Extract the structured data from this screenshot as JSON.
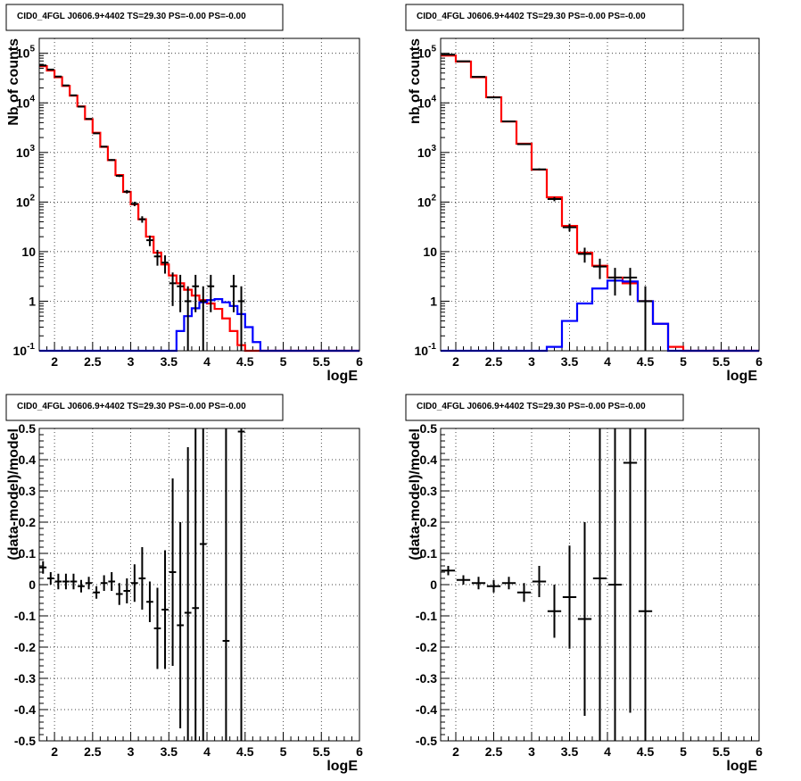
{
  "chart_data": [
    {
      "type": "line",
      "title": "CID0_4FGL J0606.9+4402 TS=29.30 PS=-0.00 PS=-0.00",
      "xlabel": "logE",
      "ylabel": "Nb of counts",
      "xlim": [
        1.8,
        6.0
      ],
      "ylim": [
        0.1,
        200000
      ],
      "yscale": "log",
      "grid": true,
      "x_ticks": [
        "2",
        "2.5",
        "3",
        "3.5",
        "4",
        "4.5",
        "5",
        "5.5",
        "6"
      ],
      "y_ticks": [
        "10^-1",
        "1",
        "10",
        "10^2",
        "10^3",
        "10^4",
        "10^5"
      ],
      "series": [
        {
          "color": "#ff0000",
          "kind": "step",
          "edges": [
            1.8,
            1.9,
            2.0,
            2.1,
            2.2,
            2.3,
            2.4,
            2.5,
            2.6,
            2.7,
            2.8,
            2.9,
            3.0,
            3.1,
            3.2,
            3.3,
            3.4,
            3.5,
            3.6,
            3.7,
            3.8,
            3.9,
            4.0,
            4.1,
            4.2,
            4.3,
            4.4,
            4.5,
            4.6,
            4.7,
            4.8,
            4.9,
            5.0,
            5.1,
            5.2,
            5.3,
            5.4,
            5.5,
            5.6,
            5.7,
            5.8,
            5.9,
            6.0
          ],
          "values": [
            55000,
            45000,
            33000,
            22000,
            14000,
            8500,
            4700,
            2500,
            1300,
            700,
            350,
            160,
            90,
            45,
            20,
            9.5,
            5.5,
            3.3,
            2.3,
            1.7,
            1.3,
            1.05,
            0.9,
            0.7,
            0.45,
            0.25,
            0.13,
            0.1,
            0.1,
            0.1,
            0.1,
            0.1,
            0.1,
            0.1,
            0.1,
            0.1,
            0.1,
            0.1,
            0.1,
            0.1,
            0.1,
            0.1
          ]
        },
        {
          "color": "#0000ff",
          "kind": "step",
          "edges": [
            1.8,
            1.9,
            2.0,
            2.1,
            2.2,
            2.3,
            2.4,
            2.5,
            2.6,
            2.7,
            2.8,
            2.9,
            3.0,
            3.1,
            3.2,
            3.3,
            3.4,
            3.5,
            3.6,
            3.7,
            3.8,
            3.9,
            4.0,
            4.1,
            4.2,
            4.3,
            4.4,
            4.5,
            4.6,
            4.7,
            4.8,
            4.9,
            5.0,
            5.1,
            5.2,
            5.3,
            5.4,
            5.5,
            5.6,
            5.7,
            5.8,
            5.9,
            6.0
          ],
          "values": [
            0.1,
            0.1,
            0.1,
            0.1,
            0.1,
            0.1,
            0.1,
            0.1,
            0.1,
            0.1,
            0.1,
            0.1,
            0.1,
            0.1,
            0.1,
            0.1,
            0.1,
            0.1,
            0.25,
            0.5,
            0.72,
            0.95,
            1.05,
            1.1,
            0.95,
            0.8,
            0.55,
            0.3,
            0.15,
            0.1,
            0.1,
            0.1,
            0.1,
            0.1,
            0.1,
            0.1,
            0.1,
            0.1,
            0.1,
            0.1,
            0.1,
            0.1
          ]
        },
        {
          "color": "#000000",
          "kind": "errorbar",
          "points": [
            {
              "x": 1.85,
              "y": 57000,
              "err": 250
            },
            {
              "x": 1.95,
              "y": 47000,
              "err": 220
            },
            {
              "x": 2.05,
              "y": 34000,
              "err": 190
            },
            {
              "x": 2.15,
              "y": 22500,
              "err": 150
            },
            {
              "x": 2.25,
              "y": 14200,
              "err": 120
            },
            {
              "x": 2.35,
              "y": 8400,
              "err": 92
            },
            {
              "x": 2.45,
              "y": 4750,
              "err": 69
            },
            {
              "x": 2.55,
              "y": 2430,
              "err": 49
            },
            {
              "x": 2.65,
              "y": 1310,
              "err": 36
            },
            {
              "x": 2.75,
              "y": 705,
              "err": 27
            },
            {
              "x": 2.85,
              "y": 338,
              "err": 18
            },
            {
              "x": 2.95,
              "y": 162,
              "err": 13
            },
            {
              "x": 3.05,
              "y": 92,
              "err": 9.6
            },
            {
              "x": 3.15,
              "y": 45,
              "err": 6.7
            },
            {
              "x": 3.25,
              "y": 17,
              "err": 4.1
            },
            {
              "x": 3.35,
              "y": 8,
              "err": 2.8
            },
            {
              "x": 3.45,
              "y": 6,
              "err": 2.4
            },
            {
              "x": 3.55,
              "y": 2.3,
              "err": 1.5
            },
            {
              "x": 3.65,
              "y": 2,
              "err": 1.4
            },
            {
              "x": 3.75,
              "y": 1,
              "err": 1.0
            },
            {
              "x": 3.85,
              "y": 2,
              "err": 1.4
            },
            {
              "x": 3.95,
              "y": 1,
              "err": 1.0
            },
            {
              "x": 4.05,
              "y": 2,
              "err": 1.4
            },
            {
              "x": 4.35,
              "y": 2,
              "err": 1.4
            },
            {
              "x": 4.45,
              "y": 1,
              "err": 1.0
            }
          ]
        }
      ]
    },
    {
      "type": "line",
      "title": "CID0_4FGL J0606.9+4402 TS=29.30 PS=-0.00 PS=-0.00",
      "xlabel": "logE",
      "ylabel": "nb of counts",
      "xlim": [
        1.8,
        6.0
      ],
      "ylim": [
        0.1,
        200000
      ],
      "yscale": "log",
      "grid": true,
      "x_ticks": [
        "2",
        "2.5",
        "3",
        "3.5",
        "4",
        "4.5",
        "5",
        "5.5",
        "6"
      ],
      "y_ticks": [
        "10^-1",
        "1",
        "10",
        "10^2",
        "10^3",
        "10^4",
        "10^5"
      ],
      "series": [
        {
          "color": "#ff0000",
          "kind": "step",
          "edges": [
            1.8,
            2.0,
            2.2,
            2.4,
            2.6,
            2.8,
            3.0,
            3.2,
            3.4,
            3.6,
            3.8,
            4.0,
            4.2,
            4.4,
            4.6,
            4.8,
            5.0,
            5.2,
            5.4,
            5.6,
            5.8,
            6.0
          ],
          "values": [
            90000,
            68000,
            33000,
            13000,
            4200,
            1500,
            450,
            125,
            33,
            9.5,
            5.2,
            3.0,
            2.3,
            1.0,
            0.35,
            0.12,
            0.1,
            0.1,
            0.1,
            0.1,
            0.1
          ]
        },
        {
          "color": "#0000ff",
          "kind": "step",
          "edges": [
            1.8,
            2.0,
            2.2,
            2.4,
            2.6,
            2.8,
            3.0,
            3.2,
            3.4,
            3.6,
            3.8,
            4.0,
            4.2,
            4.4,
            4.6,
            4.8,
            5.0,
            5.2,
            5.4,
            5.6,
            5.8,
            6.0
          ],
          "values": [
            0.1,
            0.1,
            0.1,
            0.1,
            0.1,
            0.1,
            0.1,
            0.12,
            0.4,
            0.9,
            1.8,
            2.6,
            2.5,
            1.0,
            0.35,
            0.1,
            0.1,
            0.1,
            0.1,
            0.1,
            0.1
          ]
        },
        {
          "color": "#000000",
          "kind": "errorbar",
          "points": [
            {
              "x": 1.9,
              "y": 94000,
              "err": 310
            },
            {
              "x": 2.1,
              "y": 69000,
              "err": 260
            },
            {
              "x": 2.3,
              "y": 33500,
              "err": 180
            },
            {
              "x": 2.5,
              "y": 12900,
              "err": 110
            },
            {
              "x": 2.7,
              "y": 4230,
              "err": 65
            },
            {
              "x": 2.9,
              "y": 1470,
              "err": 38
            },
            {
              "x": 3.1,
              "y": 456,
              "err": 21
            },
            {
              "x": 3.3,
              "y": 115,
              "err": 11
            },
            {
              "x": 3.5,
              "y": 31,
              "err": 5.6
            },
            {
              "x": 3.7,
              "y": 9,
              "err": 3.0
            },
            {
              "x": 3.9,
              "y": 5,
              "err": 2.2
            },
            {
              "x": 4.1,
              "y": 3,
              "err": 1.7
            },
            {
              "x": 4.3,
              "y": 3,
              "err": 1.7
            },
            {
              "x": 4.5,
              "y": 1,
              "err": 1.0
            }
          ]
        }
      ]
    },
    {
      "type": "scatter",
      "title": "CID0_4FGL J0606.9+4402 TS=29.30 PS=-0.00 PS=-0.00",
      "xlabel": "logE",
      "ylabel": "(data-model)/model",
      "xlim": [
        1.8,
        6.0
      ],
      "ylim": [
        -0.5,
        0.5
      ],
      "grid": true,
      "x_ticks": [
        "2",
        "2.5",
        "3",
        "3.5",
        "4",
        "4.5",
        "5",
        "5.5",
        "6"
      ],
      "y_ticks": [
        "-0.5",
        "-0.4",
        "-0.3",
        "-0.2",
        "-0.1",
        "0",
        "0.1",
        "0.2",
        "0.3",
        "0.4",
        "0.5"
      ],
      "series": [
        {
          "color": "#000000",
          "kind": "errorbar",
          "points": [
            {
              "x": 1.85,
              "y": 0.055,
              "err": 0.02
            },
            {
              "x": 1.95,
              "y": 0.02,
              "err": 0.02
            },
            {
              "x": 2.05,
              "y": 0.01,
              "err": 0.025
            },
            {
              "x": 2.15,
              "y": 0.01,
              "err": 0.025
            },
            {
              "x": 2.25,
              "y": 0.01,
              "err": 0.025
            },
            {
              "x": 2.35,
              "y": -0.005,
              "err": 0.02
            },
            {
              "x": 2.45,
              "y": 0.005,
              "err": 0.02
            },
            {
              "x": 2.55,
              "y": -0.025,
              "err": 0.02
            },
            {
              "x": 2.65,
              "y": 0.005,
              "err": 0.025
            },
            {
              "x": 2.75,
              "y": 0.01,
              "err": 0.03
            },
            {
              "x": 2.85,
              "y": -0.03,
              "err": 0.035
            },
            {
              "x": 2.95,
              "y": -0.02,
              "err": 0.04
            },
            {
              "x": 3.05,
              "y": 0.005,
              "err": 0.06
            },
            {
              "x": 3.15,
              "y": 0.02,
              "err": 0.1
            },
            {
              "x": 3.25,
              "y": -0.055,
              "err": 0.065
            },
            {
              "x": 3.35,
              "y": -0.14,
              "err": 0.13
            },
            {
              "x": 3.45,
              "y": -0.08,
              "err": 0.19
            },
            {
              "x": 3.55,
              "y": 0.04,
              "err": 0.3
            },
            {
              "x": 3.65,
              "y": -0.13,
              "err": 0.33
            },
            {
              "x": 3.75,
              "y": -0.09,
              "err": 0.53
            },
            {
              "x": 3.85,
              "y": -0.075,
              "err": 0.7
            },
            {
              "x": 3.95,
              "y": 0.13,
              "err": 1.0
            },
            {
              "x": 4.25,
              "y": -0.18,
              "err": 1.5
            },
            {
              "x": 4.45,
              "y": 0.49,
              "err": 2.0
            }
          ]
        }
      ]
    },
    {
      "type": "scatter",
      "title": "CID0_4FGL J0606.9+4402 TS=29.30 PS=-0.00 PS=-0.00",
      "xlabel": "logE",
      "ylabel": "(data-model)/model",
      "xlim": [
        1.8,
        6.0
      ],
      "ylim": [
        -0.5,
        0.5
      ],
      "grid": true,
      "x_ticks": [
        "2",
        "2.5",
        "3",
        "3.5",
        "4",
        "4.5",
        "5",
        "5.5",
        "6"
      ],
      "y_ticks": [
        "-0.5",
        "-0.4",
        "-0.3",
        "-0.2",
        "-0.1",
        "0",
        "0.1",
        "0.2",
        "0.3",
        "0.4",
        "0.5"
      ],
      "series": [
        {
          "color": "#000000",
          "kind": "errorbar",
          "points": [
            {
              "x": 1.9,
              "y": 0.045,
              "err": 0.015
            },
            {
              "x": 2.1,
              "y": 0.015,
              "err": 0.015
            },
            {
              "x": 2.3,
              "y": 0.005,
              "err": 0.02
            },
            {
              "x": 2.5,
              "y": -0.005,
              "err": 0.02
            },
            {
              "x": 2.7,
              "y": 0.005,
              "err": 0.02
            },
            {
              "x": 2.9,
              "y": -0.025,
              "err": 0.03
            },
            {
              "x": 3.1,
              "y": 0.01,
              "err": 0.05
            },
            {
              "x": 3.3,
              "y": -0.085,
              "err": 0.085
            },
            {
              "x": 3.5,
              "y": -0.04,
              "err": 0.165
            },
            {
              "x": 3.7,
              "y": -0.11,
              "err": 0.31
            },
            {
              "x": 3.9,
              "y": 0.02,
              "err": 0.6
            },
            {
              "x": 4.1,
              "y": 0.0,
              "err": 0.8
            },
            {
              "x": 4.3,
              "y": 0.39,
              "err": 0.8
            },
            {
              "x": 4.5,
              "y": -0.085,
              "err": 1.0
            }
          ]
        }
      ]
    }
  ]
}
